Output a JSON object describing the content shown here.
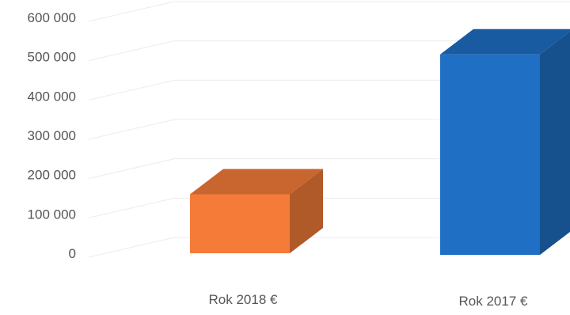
{
  "chart_data": {
    "type": "bar",
    "style": "3d-column",
    "categories": [
      "Rok 2018 €",
      "Rok 2017 €"
    ],
    "series": [
      {
        "values": [
          150000,
          510000
        ]
      }
    ],
    "colors": [
      "#f57b39",
      "#1f6fc4"
    ],
    "yticks": [
      "0",
      "100 000",
      "200 000",
      "300 000",
      "400 000",
      "500 000",
      "600 000"
    ],
    "ylim": [
      0,
      600000
    ],
    "grid": true,
    "legend": "none"
  }
}
